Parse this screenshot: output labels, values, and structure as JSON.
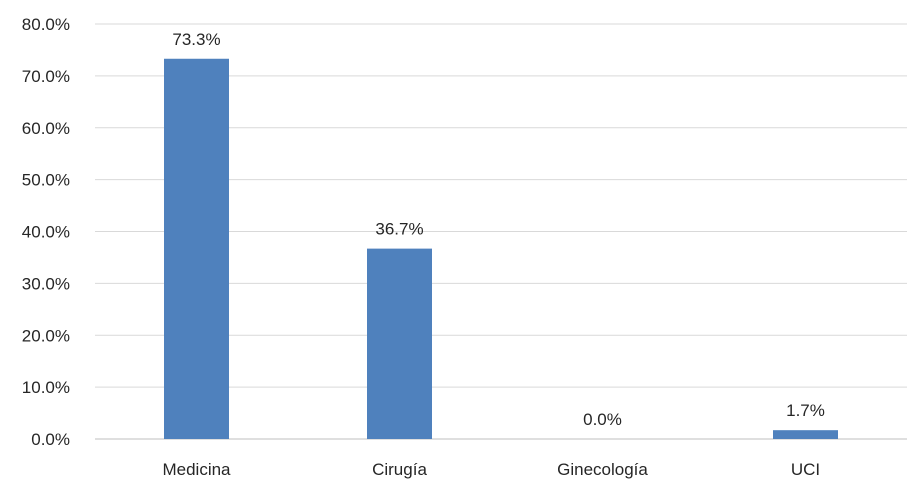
{
  "chart_data": {
    "type": "bar",
    "categories": [
      "Medicina",
      "Cirugía",
      "Ginecología",
      "UCI"
    ],
    "values": [
      73.3,
      36.7,
      0.0,
      1.7
    ],
    "data_labels": [
      "73.3%",
      "36.7%",
      "0.0%",
      "1.7%"
    ],
    "y_ticks": [
      "0.0%",
      "10.0%",
      "20.0%",
      "30.0%",
      "40.0%",
      "50.0%",
      "60.0%",
      "70.0%",
      "80.0%"
    ],
    "ylim": [
      0,
      80
    ],
    "title": "",
    "xlabel": "",
    "ylabel": "",
    "grid": true,
    "legend": "none",
    "bar_color": "#4f81bd"
  }
}
